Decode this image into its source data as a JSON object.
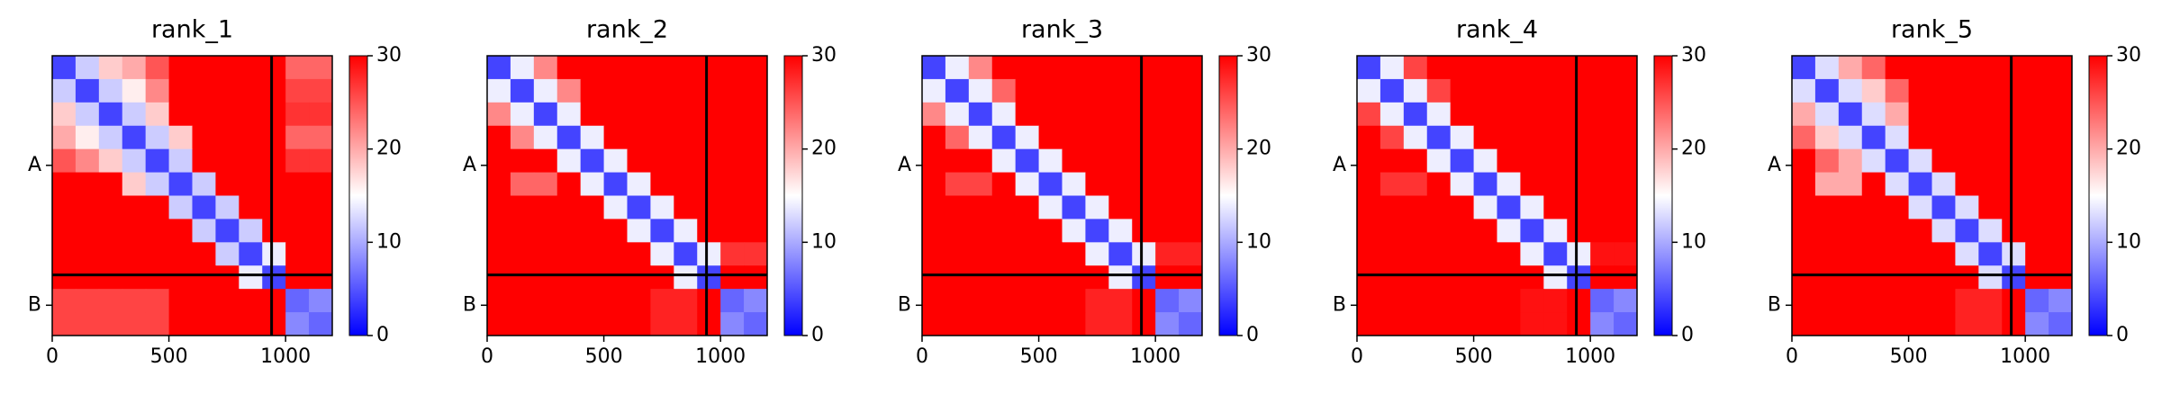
{
  "chart_data": [
    {
      "type": "heatmap",
      "title": "rank_1",
      "xlim": [
        0,
        1200
      ],
      "ylim": [
        1200,
        0
      ],
      "xticks": [
        0,
        500,
        1000
      ],
      "yticks": [
        {
          "value": 470,
          "label": "A"
        },
        {
          "value": 1070,
          "label": "B"
        }
      ],
      "chain_break": 940,
      "clim": [
        0,
        30
      ],
      "cticks": [
        0,
        10,
        20,
        30
      ],
      "colormap": [
        "#0000ff",
        "#ffffff",
        "#ff0000"
      ],
      "values": [
        [
          4,
          12,
          18,
          20,
          25,
          30,
          30,
          30,
          30,
          30,
          24,
          24
        ],
        [
          12,
          4,
          12,
          16,
          22,
          30,
          30,
          30,
          30,
          30,
          26,
          26
        ],
        [
          18,
          12,
          4,
          12,
          18,
          30,
          30,
          30,
          30,
          30,
          27,
          27
        ],
        [
          20,
          16,
          12,
          4,
          12,
          18,
          30,
          30,
          30,
          30,
          24,
          24
        ],
        [
          25,
          22,
          18,
          12,
          4,
          12,
          30,
          30,
          30,
          30,
          27,
          27
        ],
        [
          30,
          30,
          30,
          18,
          12,
          4,
          12,
          30,
          30,
          30,
          30,
          30
        ],
        [
          30,
          30,
          30,
          30,
          30,
          12,
          4,
          12,
          30,
          30,
          30,
          30
        ],
        [
          30,
          30,
          30,
          30,
          30,
          30,
          12,
          4,
          12,
          30,
          30,
          30
        ],
        [
          30,
          30,
          30,
          30,
          30,
          30,
          30,
          12,
          4,
          14,
          30,
          30
        ],
        [
          30,
          30,
          30,
          30,
          30,
          30,
          30,
          30,
          14,
          4,
          30,
          30
        ],
        [
          26,
          26,
          26,
          26,
          26,
          30,
          30,
          30,
          30,
          30,
          6,
          8
        ],
        [
          26,
          26,
          26,
          26,
          26,
          30,
          30,
          30,
          30,
          30,
          8,
          6
        ]
      ]
    },
    {
      "type": "heatmap",
      "title": "rank_2",
      "xlim": [
        0,
        1200
      ],
      "ylim": [
        1200,
        0
      ],
      "xticks": [
        0,
        500,
        1000
      ],
      "yticks": [
        {
          "value": 470,
          "label": "A"
        },
        {
          "value": 1070,
          "label": "B"
        }
      ],
      "chain_break": 940,
      "clim": [
        0,
        30
      ],
      "cticks": [
        0,
        10,
        20,
        30
      ],
      "colormap": [
        "#0000ff",
        "#ffffff",
        "#ff0000"
      ],
      "values": [
        [
          4,
          14,
          22,
          30,
          30,
          30,
          30,
          30,
          30,
          30,
          30,
          30
        ],
        [
          14,
          4,
          14,
          22,
          30,
          30,
          30,
          30,
          30,
          30,
          30,
          30
        ],
        [
          22,
          14,
          4,
          14,
          30,
          30,
          30,
          30,
          30,
          30,
          30,
          30
        ],
        [
          30,
          22,
          14,
          4,
          14,
          30,
          30,
          30,
          30,
          30,
          30,
          30
        ],
        [
          30,
          30,
          30,
          14,
          4,
          14,
          30,
          30,
          30,
          30,
          30,
          30
        ],
        [
          30,
          24,
          24,
          30,
          14,
          4,
          14,
          30,
          30,
          30,
          30,
          30
        ],
        [
          30,
          30,
          30,
          30,
          30,
          14,
          4,
          14,
          30,
          30,
          30,
          30
        ],
        [
          30,
          30,
          30,
          30,
          30,
          30,
          14,
          4,
          14,
          30,
          30,
          30
        ],
        [
          30,
          30,
          30,
          30,
          30,
          30,
          30,
          14,
          4,
          14,
          27,
          27
        ],
        [
          30,
          30,
          30,
          30,
          30,
          30,
          30,
          30,
          14,
          4,
          30,
          30
        ],
        [
          30,
          30,
          30,
          30,
          30,
          30,
          30,
          28,
          28,
          30,
          6,
          8
        ],
        [
          30,
          30,
          30,
          30,
          30,
          30,
          30,
          28,
          28,
          30,
          8,
          6
        ]
      ]
    },
    {
      "type": "heatmap",
      "title": "rank_3",
      "xlim": [
        0,
        1200
      ],
      "ylim": [
        1200,
        0
      ],
      "xticks": [
        0,
        500,
        1000
      ],
      "yticks": [
        {
          "value": 470,
          "label": "A"
        },
        {
          "value": 1070,
          "label": "B"
        }
      ],
      "chain_break": 940,
      "clim": [
        0,
        30
      ],
      "cticks": [
        0,
        10,
        20,
        30
      ],
      "colormap": [
        "#0000ff",
        "#ffffff",
        "#ff0000"
      ],
      "values": [
        [
          4,
          14,
          22,
          30,
          30,
          30,
          30,
          30,
          30,
          30,
          30,
          30
        ],
        [
          14,
          4,
          14,
          24,
          30,
          30,
          30,
          30,
          30,
          30,
          30,
          30
        ],
        [
          22,
          14,
          4,
          14,
          30,
          30,
          30,
          30,
          30,
          30,
          30,
          30
        ],
        [
          30,
          24,
          14,
          4,
          14,
          30,
          30,
          30,
          30,
          30,
          30,
          30
        ],
        [
          30,
          30,
          30,
          14,
          4,
          14,
          30,
          30,
          30,
          30,
          30,
          30
        ],
        [
          30,
          26,
          26,
          30,
          14,
          4,
          14,
          30,
          30,
          30,
          30,
          30
        ],
        [
          30,
          30,
          30,
          30,
          30,
          14,
          4,
          14,
          30,
          30,
          30,
          30
        ],
        [
          30,
          30,
          30,
          30,
          30,
          30,
          14,
          4,
          14,
          30,
          30,
          30
        ],
        [
          30,
          30,
          30,
          30,
          30,
          30,
          30,
          14,
          4,
          14,
          28,
          28
        ],
        [
          30,
          30,
          30,
          30,
          30,
          30,
          30,
          30,
          14,
          4,
          30,
          30
        ],
        [
          30,
          30,
          30,
          30,
          30,
          30,
          30,
          28,
          28,
          30,
          6,
          8
        ],
        [
          30,
          30,
          30,
          30,
          30,
          30,
          30,
          28,
          28,
          30,
          8,
          6
        ]
      ]
    },
    {
      "type": "heatmap",
      "title": "rank_4",
      "xlim": [
        0,
        1200
      ],
      "ylim": [
        1200,
        0
      ],
      "xticks": [
        0,
        500,
        1000
      ],
      "yticks": [
        {
          "value": 470,
          "label": "A"
        },
        {
          "value": 1070,
          "label": "B"
        }
      ],
      "chain_break": 940,
      "clim": [
        0,
        30
      ],
      "cticks": [
        0,
        10,
        20,
        30
      ],
      "colormap": [
        "#0000ff",
        "#ffffff",
        "#ff0000"
      ],
      "values": [
        [
          4,
          14,
          26,
          30,
          30,
          30,
          30,
          30,
          30,
          30,
          30,
          30
        ],
        [
          14,
          4,
          14,
          26,
          30,
          30,
          30,
          30,
          30,
          30,
          30,
          30
        ],
        [
          26,
          14,
          4,
          14,
          30,
          30,
          30,
          30,
          30,
          30,
          30,
          30
        ],
        [
          30,
          26,
          14,
          4,
          14,
          30,
          30,
          30,
          30,
          30,
          30,
          30
        ],
        [
          30,
          30,
          30,
          14,
          4,
          14,
          30,
          30,
          30,
          30,
          30,
          30
        ],
        [
          30,
          27,
          27,
          30,
          14,
          4,
          14,
          30,
          30,
          30,
          30,
          30
        ],
        [
          30,
          30,
          30,
          30,
          30,
          14,
          4,
          14,
          30,
          30,
          30,
          30
        ],
        [
          30,
          30,
          30,
          30,
          30,
          30,
          14,
          4,
          14,
          30,
          30,
          30
        ],
        [
          30,
          30,
          30,
          30,
          30,
          30,
          30,
          14,
          4,
          14,
          29,
          29
        ],
        [
          30,
          30,
          30,
          30,
          30,
          30,
          30,
          30,
          14,
          4,
          30,
          30
        ],
        [
          30,
          30,
          30,
          30,
          30,
          30,
          30,
          29,
          29,
          30,
          6,
          8
        ],
        [
          30,
          30,
          30,
          30,
          30,
          30,
          30,
          29,
          29,
          30,
          8,
          6
        ]
      ]
    },
    {
      "type": "heatmap",
      "title": "rank_5",
      "xlim": [
        0,
        1200
      ],
      "ylim": [
        1200,
        0
      ],
      "xticks": [
        0,
        500,
        1000
      ],
      "yticks": [
        {
          "value": 470,
          "label": "A"
        },
        {
          "value": 1070,
          "label": "B"
        }
      ],
      "chain_break": 940,
      "clim": [
        0,
        30
      ],
      "cticks": [
        0,
        10,
        20,
        30
      ],
      "colormap": [
        "#0000ff",
        "#ffffff",
        "#ff0000"
      ],
      "values": [
        [
          4,
          13,
          20,
          24,
          30,
          30,
          30,
          30,
          30,
          30,
          30,
          30
        ],
        [
          13,
          4,
          13,
          18,
          24,
          30,
          30,
          30,
          30,
          30,
          30,
          30
        ],
        [
          20,
          13,
          4,
          13,
          20,
          30,
          30,
          30,
          30,
          30,
          30,
          30
        ],
        [
          24,
          18,
          13,
          4,
          13,
          30,
          30,
          30,
          30,
          30,
          30,
          30
        ],
        [
          30,
          24,
          20,
          13,
          4,
          13,
          30,
          30,
          30,
          30,
          30,
          30
        ],
        [
          30,
          20,
          20,
          30,
          13,
          4,
          13,
          30,
          30,
          30,
          30,
          30
        ],
        [
          30,
          30,
          30,
          30,
          30,
          13,
          4,
          13,
          30,
          30,
          30,
          30
        ],
        [
          30,
          30,
          30,
          30,
          30,
          30,
          13,
          4,
          13,
          30,
          30,
          30
        ],
        [
          30,
          30,
          30,
          30,
          30,
          30,
          30,
          13,
          4,
          13,
          30,
          30
        ],
        [
          30,
          30,
          30,
          30,
          30,
          30,
          30,
          30,
          13,
          4,
          30,
          30
        ],
        [
          30,
          30,
          30,
          30,
          30,
          30,
          30,
          28,
          28,
          30,
          6,
          8
        ],
        [
          30,
          30,
          30,
          30,
          30,
          30,
          30,
          28,
          28,
          30,
          8,
          6
        ]
      ]
    }
  ]
}
